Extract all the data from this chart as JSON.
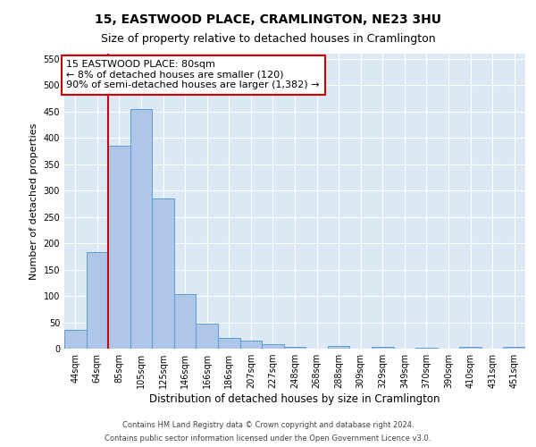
{
  "title": "15, EASTWOOD PLACE, CRAMLINGTON, NE23 3HU",
  "subtitle": "Size of property relative to detached houses in Cramlington",
  "xlabel": "Distribution of detached houses by size in Cramlington",
  "ylabel": "Number of detached properties",
  "footer_line1": "Contains HM Land Registry data © Crown copyright and database right 2024.",
  "footer_line2": "Contains public sector information licensed under the Open Government Licence v3.0.",
  "categories": [
    "44sqm",
    "64sqm",
    "85sqm",
    "105sqm",
    "125sqm",
    "146sqm",
    "166sqm",
    "186sqm",
    "207sqm",
    "227sqm",
    "248sqm",
    "268sqm",
    "288sqm",
    "309sqm",
    "329sqm",
    "349sqm",
    "370sqm",
    "390sqm",
    "410sqm",
    "431sqm",
    "451sqm"
  ],
  "values": [
    35,
    183,
    385,
    455,
    285,
    103,
    48,
    20,
    16,
    9,
    4,
    0,
    5,
    0,
    4,
    0,
    1,
    0,
    4,
    0,
    4
  ],
  "bar_color": "#aec6e8",
  "bar_edge_color": "#5b9bd5",
  "vline_color": "#cc0000",
  "annotation_text": "15 EASTWOOD PLACE: 80sqm\n← 8% of detached houses are smaller (120)\n90% of semi-detached houses are larger (1,382) →",
  "annotation_box_facecolor": "#ffffff",
  "annotation_box_edgecolor": "#cc0000",
  "ylim": [
    0,
    560
  ],
  "yticks": [
    0,
    50,
    100,
    150,
    200,
    250,
    300,
    350,
    400,
    450,
    500,
    550
  ],
  "bg_color": "#dce9f5",
  "title_fontsize": 10,
  "subtitle_fontsize": 9,
  "xlabel_fontsize": 8.5,
  "ylabel_fontsize": 8,
  "tick_fontsize": 7,
  "annotation_fontsize": 8,
  "footer_fontsize": 6
}
